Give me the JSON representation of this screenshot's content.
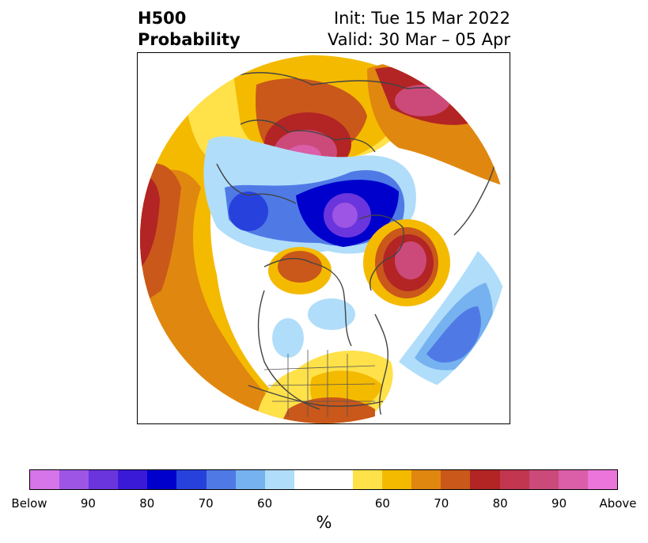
{
  "header": {
    "title_line1": "H500",
    "title_line2": "Probability",
    "init": "Init: Tue 15 Mar 2022",
    "valid": "Valid: 30 Mar – 05 Apr"
  },
  "map": {
    "projection": "north-polar-stereographic",
    "features": [
      "coastlines",
      "country-borders",
      "us-state-borders"
    ],
    "anomalies": [
      {
        "name": "Siberia",
        "sign": "above",
        "peak_percent": 90
      },
      {
        "name": "East Asia / Kamchatka",
        "sign": "above",
        "peak_percent": 90
      },
      {
        "name": "Greenland / Labrador",
        "sign": "above",
        "peak_percent": 90
      },
      {
        "name": "Arctic Ocean",
        "sign": "below",
        "peak_percent": 90
      },
      {
        "name": "Gulf of Alaska / Eastern Pacific",
        "sign": "above",
        "peak_percent": 80
      },
      {
        "name": "Southeastern United States",
        "sign": "above",
        "peak_percent": 70
      },
      {
        "name": "North Atlantic",
        "sign": "below",
        "peak_percent": 70
      },
      {
        "name": "Central Siberia",
        "sign": "below",
        "peak_percent": 70
      }
    ]
  },
  "colorbar": {
    "unit_label": "%",
    "colors": [
      "#d575e9",
      "#9d55e5",
      "#6b35dd",
      "#3a1ad6",
      "#0000cc",
      "#2742dc",
      "#4f7ae6",
      "#76b2ef",
      "#b0ddfa",
      "#ffffff",
      "#ffffff",
      "#ffe14a",
      "#f4ba00",
      "#e08710",
      "#c9581a",
      "#b32424",
      "#c23650",
      "#cc4a7a",
      "#da5ea8",
      "#ec75dc"
    ],
    "tick_labels": [
      "Below",
      "90",
      "80",
      "70",
      "60",
      "",
      "60",
      "70",
      "80",
      "90",
      "Above"
    ]
  }
}
